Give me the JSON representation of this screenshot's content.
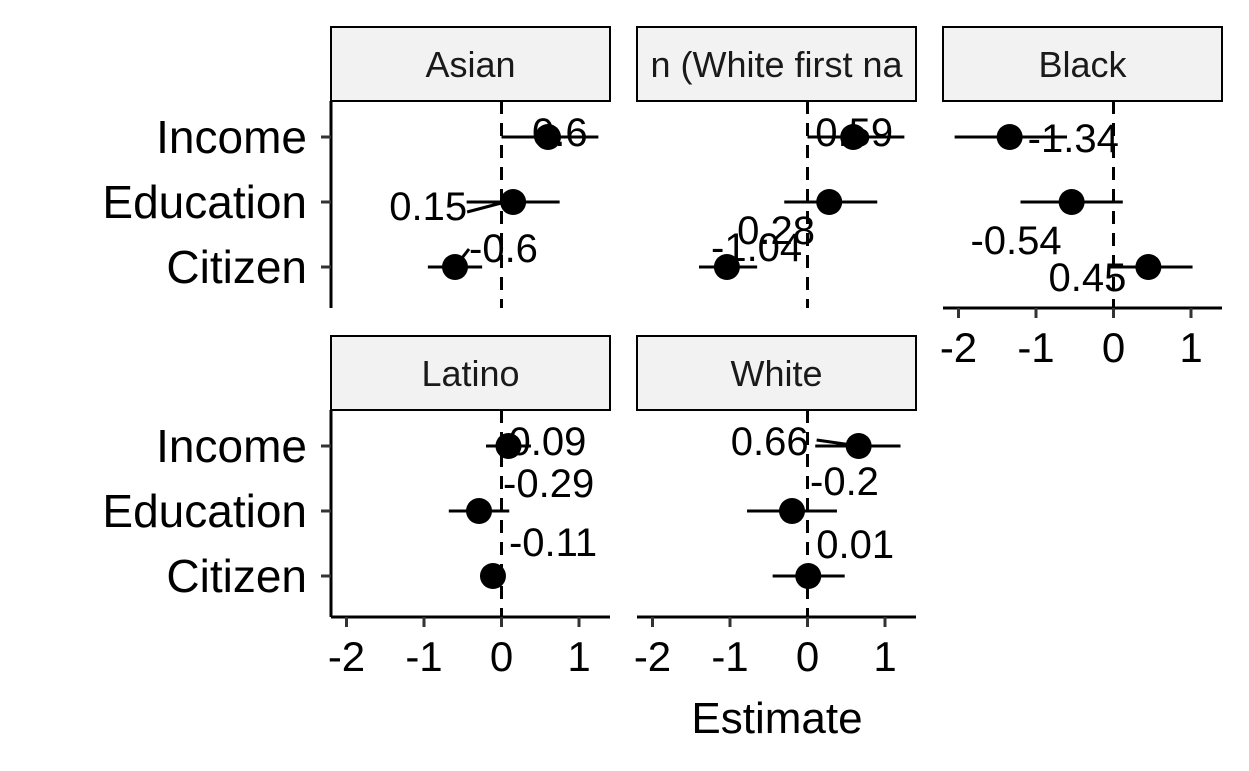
{
  "chart_data": {
    "type": "scatter",
    "xlabel": "Estimate",
    "ylabel": "",
    "xlim": [
      -2.2,
      1.4
    ],
    "xticks": [
      -2,
      -1,
      0,
      1
    ],
    "xtick_labels": [
      "-2",
      "-1",
      "0",
      "1"
    ],
    "categories": [
      "Income",
      "Education",
      "Citizen"
    ],
    "reference_line": {
      "x": 0,
      "style": "dashed"
    },
    "grid": false,
    "panels": [
      {
        "name": "Asian",
        "strip_display": "Asian",
        "points": [
          {
            "category": "Income",
            "estimate": 0.6,
            "lo": 0.0,
            "hi": 1.25,
            "label": "0.6"
          },
          {
            "category": "Education",
            "estimate": 0.15,
            "lo": -0.45,
            "hi": 0.75,
            "label": "0.15"
          },
          {
            "category": "Citizen",
            "estimate": -0.6,
            "lo": -0.95,
            "hi": -0.25,
            "label": "-0.6"
          }
        ]
      },
      {
        "name": "Asian (White first name)",
        "strip_display": "n (White first na",
        "points": [
          {
            "category": "Income",
            "estimate": 0.59,
            "lo": 0.0,
            "hi": 1.25,
            "label": "0.59"
          },
          {
            "category": "Education",
            "estimate": 0.28,
            "lo": -0.3,
            "hi": 0.9,
            "label": "0.28"
          },
          {
            "category": "Citizen",
            "estimate": -1.04,
            "lo": -1.4,
            "hi": -0.65,
            "label": "-1.04"
          }
        ]
      },
      {
        "name": "Black",
        "strip_display": "Black",
        "points": [
          {
            "category": "Income",
            "estimate": -1.34,
            "lo": -2.05,
            "hi": -0.6,
            "label": "-1.34"
          },
          {
            "category": "Education",
            "estimate": -0.54,
            "lo": -1.2,
            "hi": 0.12,
            "label": "-0.54"
          },
          {
            "category": "Citizen",
            "estimate": 0.45,
            "lo": -0.05,
            "hi": 1.02,
            "label": "0.45"
          }
        ]
      },
      {
        "name": "Latino",
        "strip_display": "Latino",
        "points": [
          {
            "category": "Income",
            "estimate": 0.09,
            "lo": -0.2,
            "hi": 0.38,
            "label": "0.09"
          },
          {
            "category": "Education",
            "estimate": -0.29,
            "lo": -0.68,
            "hi": 0.1,
            "label": "-0.29"
          },
          {
            "category": "Citizen",
            "estimate": -0.11,
            "lo": -0.2,
            "hi": -0.02,
            "label": "-0.11"
          }
        ]
      },
      {
        "name": "White",
        "strip_display": "White",
        "points": [
          {
            "category": "Income",
            "estimate": 0.66,
            "lo": 0.1,
            "hi": 1.2,
            "label": "0.66"
          },
          {
            "category": "Education",
            "estimate": -0.2,
            "lo": -0.78,
            "hi": 0.38,
            "label": "-0.2"
          },
          {
            "category": "Citizen",
            "estimate": 0.01,
            "lo": -0.45,
            "hi": 0.48,
            "label": "0.01"
          }
        ]
      }
    ]
  }
}
